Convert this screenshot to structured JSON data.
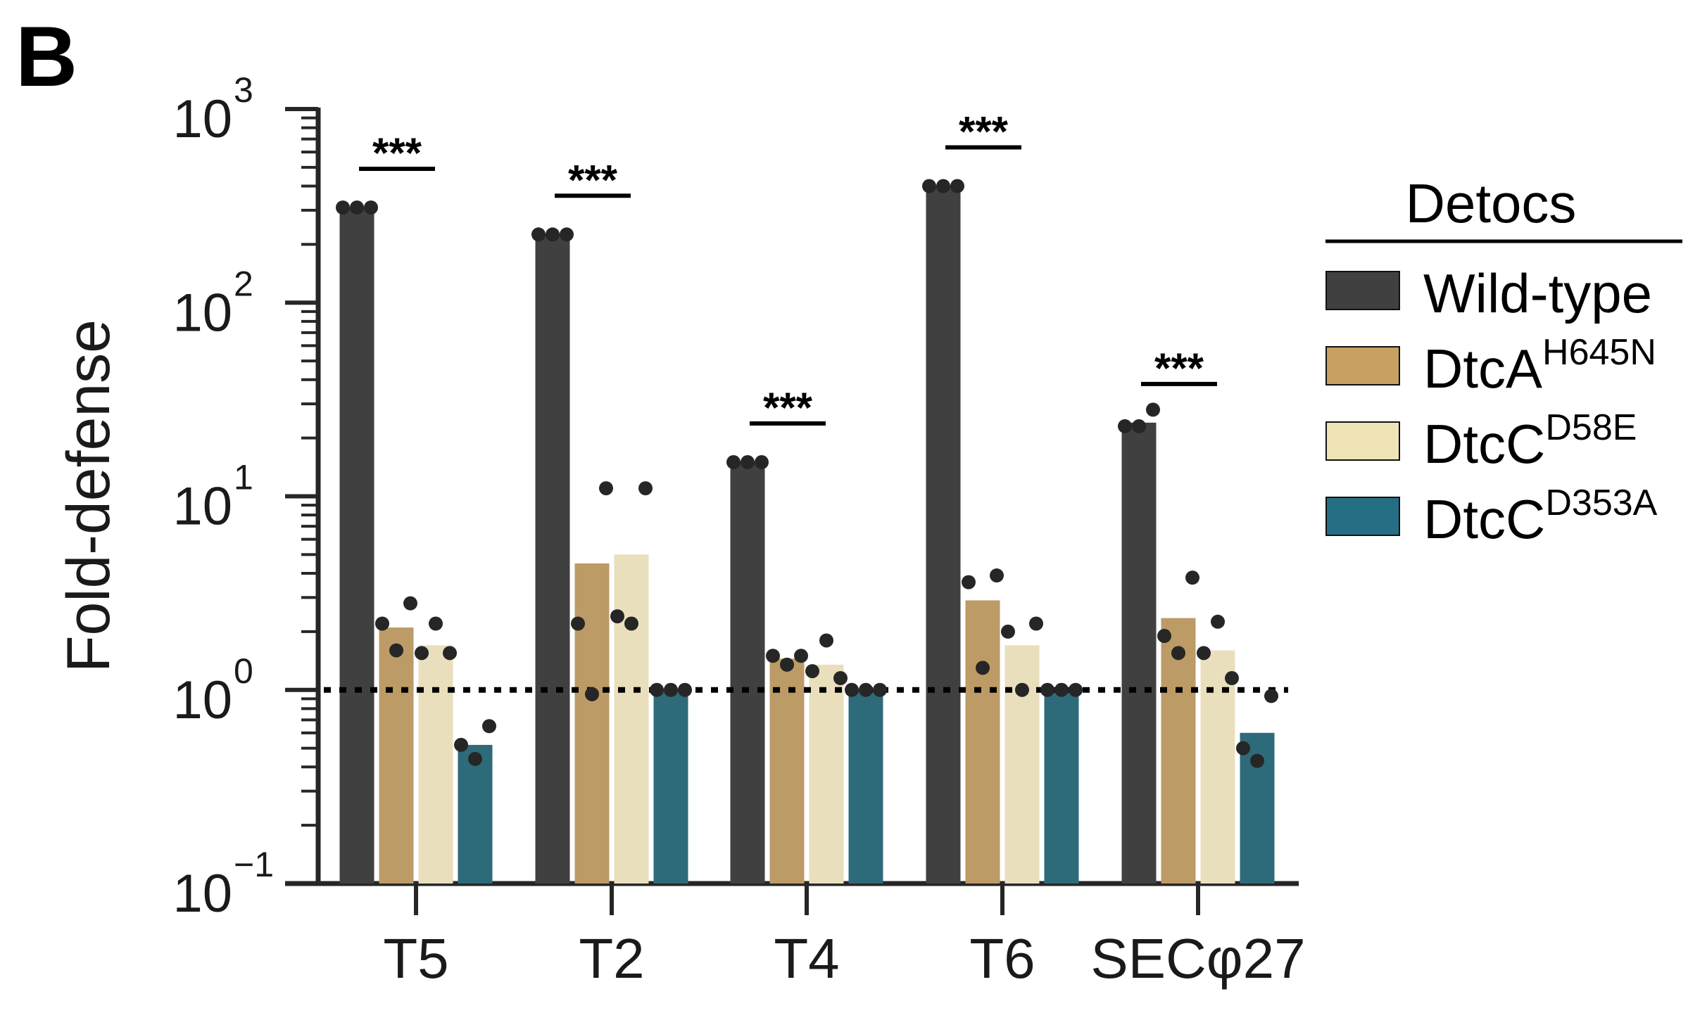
{
  "panel_label": "B",
  "chart_data": {
    "type": "bar",
    "scale": "log",
    "ylabel": "Fold-defense",
    "ylim": [
      0.1,
      1000
    ],
    "y_ticks": [
      {
        "base": "10",
        "exp": "3",
        "value": 1000
      },
      {
        "base": "10",
        "exp": "2",
        "value": 100
      },
      {
        "base": "10",
        "exp": "1",
        "value": 10
      },
      {
        "base": "10",
        "exp": "0",
        "value": 1
      },
      {
        "base": "10",
        "exp": "−1",
        "value": 0.1
      }
    ],
    "reference_line": 1,
    "categories": [
      "T5",
      "T2",
      "T4",
      "T6",
      "SECφ27"
    ],
    "legend": {
      "title": "Detocs",
      "position": "right",
      "entries": [
        {
          "main": "Wild-type",
          "sup": ""
        },
        {
          "main": "DtcA",
          "sup": "H645N"
        },
        {
          "main": "DtcC",
          "sup": "D58E"
        },
        {
          "main": "DtcC",
          "sup": "D353A"
        }
      ]
    },
    "series": [
      {
        "color": "#404040",
        "values": [
          310,
          225,
          15,
          400,
          24
        ],
        "points": [
          [
            310,
            310,
            310
          ],
          [
            225,
            225,
            225
          ],
          [
            15,
            15,
            15
          ],
          [
            400,
            400,
            400
          ],
          [
            23,
            23,
            28
          ]
        ]
      },
      {
        "color": "#bd9b66",
        "values": [
          2.1,
          4.5,
          1.45,
          2.9,
          2.35
        ],
        "points": [
          [
            2.2,
            1.6,
            2.8
          ],
          [
            2.2,
            0.95,
            11
          ],
          [
            1.5,
            1.35,
            1.5
          ],
          [
            3.6,
            1.3,
            3.9
          ],
          [
            1.9,
            1.55,
            3.8
          ]
        ]
      },
      {
        "color": "#eadfbd",
        "values": [
          1.7,
          5.0,
          1.35,
          1.7,
          1.6
        ],
        "points": [
          [
            1.55,
            2.2,
            1.55
          ],
          [
            2.4,
            2.2,
            11
          ],
          [
            1.25,
            1.8,
            1.15
          ],
          [
            2.0,
            1.0,
            2.2
          ],
          [
            1.55,
            2.25,
            1.15
          ]
        ]
      },
      {
        "color": "#2e6b7a",
        "values": [
          0.52,
          1.0,
          1.0,
          1.0,
          0.6
        ],
        "points": [
          [
            0.52,
            0.44,
            0.65
          ],
          [
            1.0,
            1.0,
            1.0
          ],
          [
            1.0,
            1.0,
            1.0
          ],
          [
            1.0,
            1.0,
            1.0
          ],
          [
            0.5,
            0.43,
            0.93
          ]
        ]
      }
    ],
    "significance": [
      {
        "category": "T5",
        "label": "***"
      },
      {
        "category": "T2",
        "label": "***"
      },
      {
        "category": "T4",
        "label": "***"
      },
      {
        "category": "T6",
        "label": "***"
      },
      {
        "category": "SECφ27",
        "label": "***"
      }
    ],
    "grid": false
  },
  "colors": {
    "wild_type": "#404040",
    "dtcA_H645N": "#bd9b66",
    "dtcC_D58E": "#eadfbd",
    "dtcC_D353A": "#2e6b7a",
    "legend_wild_type": "#404040",
    "legend_dtcA": "#c8a060",
    "legend_dtcC_D58E": "#efe4b6",
    "legend_dtcC_D353A": "#246f84"
  }
}
